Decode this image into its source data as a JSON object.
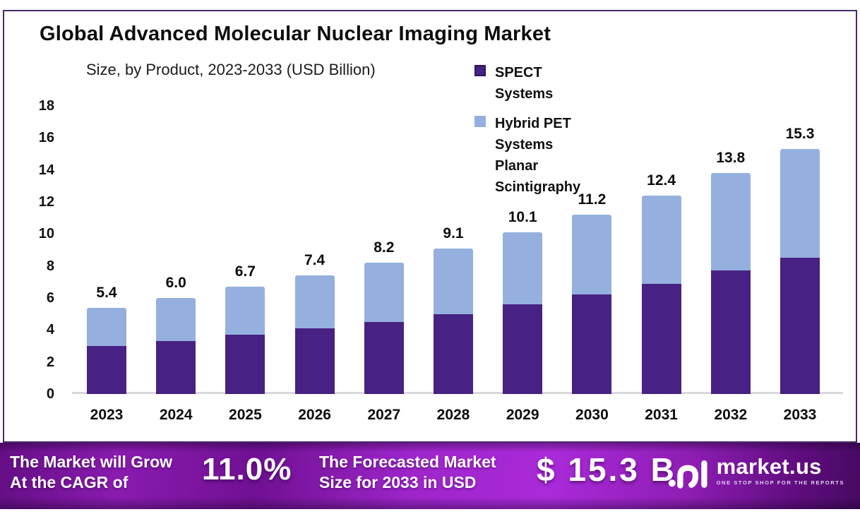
{
  "page": {
    "title": "Global Advanced Molecular Nuclear Imaging Market",
    "subtitle": "Size, by Product, 2023-2033 (USD Billion)"
  },
  "legend": [
    {
      "label": "SPECT Systems",
      "color": "#472183"
    },
    {
      "label": "Hybrid PET Systems Planar Scintigraphy",
      "color": "#95b0df"
    }
  ],
  "chart_data": {
    "type": "bar",
    "stacked": true,
    "title": "Global Advanced Molecular Nuclear Imaging Market Size, by Product, 2023-2033 (USD Billion)",
    "categories": [
      "2023",
      "2024",
      "2025",
      "2026",
      "2027",
      "2028",
      "2029",
      "2030",
      "2031",
      "2032",
      "2033"
    ],
    "series": [
      {
        "name": "SPECT Systems",
        "color": "#472183",
        "values": [
          3.0,
          3.3,
          3.7,
          4.1,
          4.5,
          5.0,
          5.6,
          6.2,
          6.9,
          7.7,
          8.5
        ]
      },
      {
        "name": "Hybrid PET Systems Planar Scintigraphy",
        "color": "#95b0df",
        "values": [
          2.4,
          2.7,
          3.0,
          3.3,
          3.7,
          4.1,
          4.5,
          5.0,
          5.5,
          6.1,
          6.8
        ]
      }
    ],
    "totals_labels": [
      "5.4",
      "6.0",
      "6.7",
      "7.4",
      "8.2",
      "9.1",
      "10.1",
      "11.2",
      "12.4",
      "13.8",
      "15.3"
    ],
    "xlabel": "",
    "ylabel": "USD Billion",
    "y_axis": {
      "min": 0,
      "max": 18,
      "step": 2,
      "ticks": [
        "0",
        "2",
        "4",
        "6",
        "8",
        "10",
        "12",
        "14",
        "16",
        "18"
      ]
    },
    "grid": false,
    "legend_position": "top-right"
  },
  "banner": {
    "cagr_line1": "The Market will Grow",
    "cagr_line2": "At the CAGR of",
    "cagr_value": "11.0%",
    "forecast_line1": "The Forecasted Market",
    "forecast_line2": "Size for 2033 in USD",
    "forecast_value": "$ 15.3 B",
    "gradient_colors": [
      "#650e85",
      "#aa2ad9",
      "#470a62"
    ]
  },
  "logo": {
    "brand": "market.us",
    "tagline": "ONE STOP SHOP FOR THE REPORTS"
  }
}
